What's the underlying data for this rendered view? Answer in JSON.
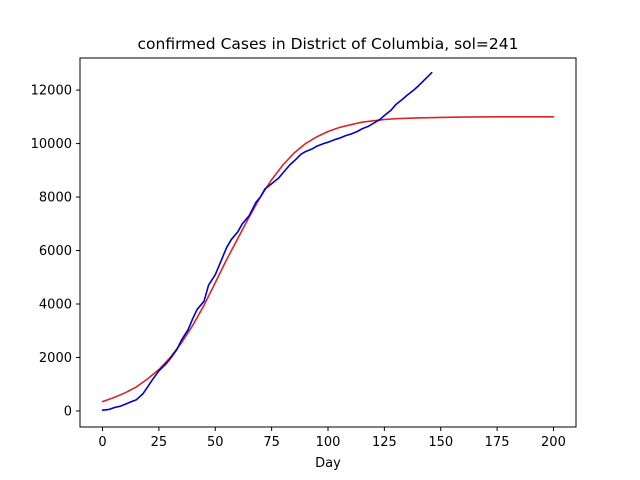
{
  "chart_data": {
    "type": "line",
    "title": "confirmed Cases in District of Columbia, sol=241",
    "xlabel": "Day",
    "ylabel": "",
    "xlim": [
      -10,
      210
    ],
    "ylim": [
      -600,
      13200
    ],
    "xticks": [
      0,
      25,
      50,
      75,
      100,
      125,
      150,
      175,
      200
    ],
    "yticks": [
      0,
      2000,
      4000,
      6000,
      8000,
      10000,
      12000
    ],
    "grid": false,
    "legend": "none",
    "series": [
      {
        "color": "#d62728",
        "x": [
          0,
          5,
          10,
          15,
          20,
          25,
          30,
          35,
          40,
          45,
          50,
          55,
          60,
          65,
          70,
          75,
          80,
          85,
          90,
          95,
          100,
          105,
          110,
          115,
          120,
          125,
          130,
          140,
          150,
          160,
          175,
          200
        ],
        "y": [
          350,
          500,
          680,
          900,
          1200,
          1550,
          2000,
          2550,
          3200,
          3950,
          4800,
          5650,
          6450,
          7250,
          8000,
          8650,
          9200,
          9650,
          10000,
          10250,
          10450,
          10600,
          10700,
          10800,
          10850,
          10900,
          10930,
          10960,
          10980,
          10990,
          11000,
          11000
        ]
      },
      {
        "color": "#0000cc",
        "x": [
          0,
          3,
          5,
          8,
          10,
          12,
          15,
          18,
          20,
          22,
          25,
          28,
          30,
          33,
          35,
          38,
          40,
          42,
          45,
          47,
          50,
          52,
          55,
          57,
          60,
          62,
          65,
          68,
          70,
          72,
          75,
          78,
          80,
          83,
          85,
          88,
          90,
          93,
          95,
          98,
          100,
          103,
          105,
          108,
          110,
          113,
          115,
          118,
          120,
          123,
          125,
          128,
          130,
          133,
          135,
          138,
          140,
          143,
          146
        ],
        "y": [
          30,
          60,
          120,
          180,
          250,
          320,
          420,
          650,
          900,
          1150,
          1500,
          1750,
          1950,
          2300,
          2650,
          3050,
          3450,
          3800,
          4100,
          4700,
          5100,
          5500,
          6100,
          6400,
          6700,
          7000,
          7300,
          7800,
          8000,
          8300,
          8500,
          8700,
          8900,
          9200,
          9350,
          9600,
          9700,
          9800,
          9900,
          10000,
          10050,
          10150,
          10200,
          10300,
          10350,
          10450,
          10550,
          10650,
          10750,
          10900,
          11050,
          11250,
          11450,
          11650,
          11800,
          12000,
          12150,
          12400,
          12650
        ]
      }
    ]
  }
}
